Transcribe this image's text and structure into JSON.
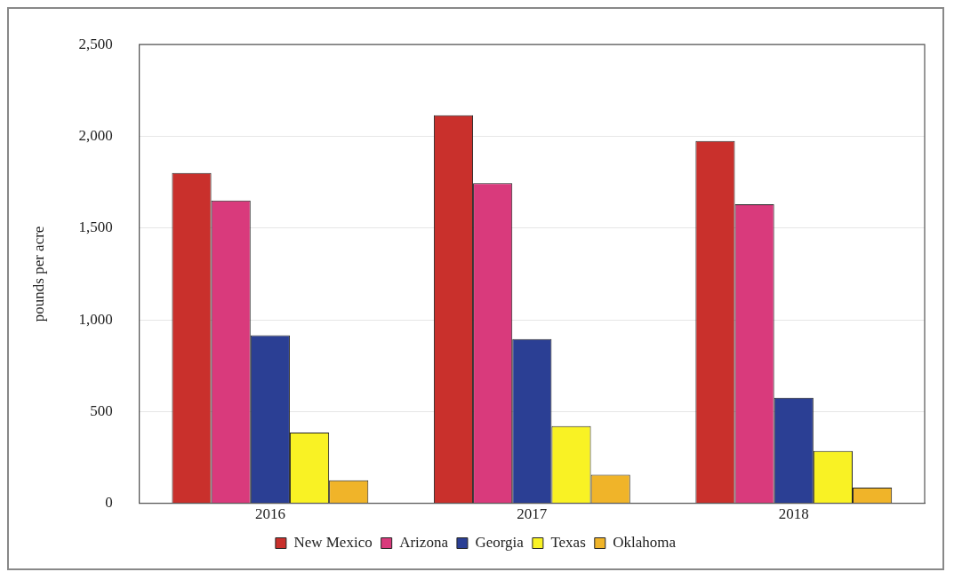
{
  "chart_data": {
    "type": "bar",
    "ylabel": "pounds per acre",
    "categories": [
      "2016",
      "2017",
      "2018"
    ],
    "series": [
      {
        "name": "New Mexico",
        "color": "#c9302c",
        "values": [
          1800,
          2115,
          1975
        ]
      },
      {
        "name": "Arizona",
        "color": "#d93a7c",
        "values": [
          1650,
          1745,
          1630
        ]
      },
      {
        "name": "Georgia",
        "color": "#2b3f94",
        "values": [
          915,
          895,
          575
        ]
      },
      {
        "name": "Texas",
        "color": "#f9f224",
        "values": [
          385,
          420,
          285
        ]
      },
      {
        "name": "Oklahoma",
        "color": "#f0b429",
        "values": [
          125,
          155,
          85
        ]
      }
    ],
    "ylim": [
      0,
      2500
    ],
    "yticks": [
      0,
      500,
      {
        "value": 1000,
        "label": "1,000"
      },
      {
        "value": 1500,
        "label": "1,500"
      },
      {
        "value": 2000,
        "label": "2,000"
      },
      {
        "value": 2500,
        "label": "2,500"
      }
    ],
    "grid": "y",
    "legend": "bottom"
  }
}
